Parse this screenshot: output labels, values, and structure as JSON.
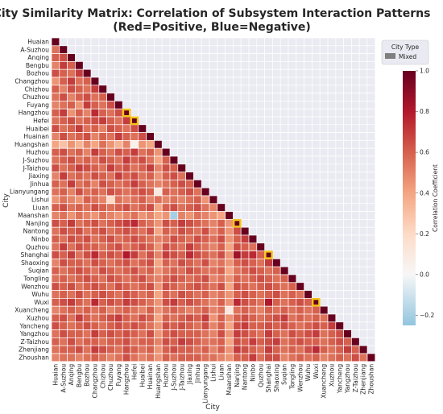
{
  "chart_data": {
    "type": "heatmap",
    "title": "City Similarity Matrix: Correlation of Subsystem Interaction Patterns",
    "subtitle": "(Red=Positive, Blue=Negative)",
    "xlabel": "City",
    "ylabel": "City",
    "colorbar": {
      "label": "Correlation Coefficient",
      "range": [
        -0.25,
        1.0
      ],
      "ticks": [
        -0.2,
        0.0,
        0.2,
        0.4,
        0.6,
        0.8,
        1.0
      ],
      "tick_labels": [
        "−0.2",
        "0.0",
        "0.2",
        "0.4",
        "0.6",
        "0.8",
        "1.0"
      ]
    },
    "legend": {
      "title": "City Type",
      "items": [
        "Mixed"
      ],
      "placement": "top-right"
    },
    "colors": {
      "positive": "#67001f",
      "zero": "#f7f7f7",
      "negative": "#92c5de",
      "upper_triangle": "#eaeaf2",
      "highlight": "#f5c518"
    },
    "mask": "upper-triangle",
    "categories": [
      "Huaian",
      "A-Suzhou",
      "Anqing",
      "Bengbu",
      "Bozhou",
      "Changzhou",
      "Chizhou",
      "Chuzhou",
      "Fuyang",
      "Hangzhou",
      "Hefei",
      "Huaibei",
      "Huainan",
      "Huangshan",
      "Huzhou",
      "J-Suzhou",
      "J-Taizhou",
      "Jiaxing",
      "Jinhua",
      "Lianyungang",
      "Lishui",
      "Liuan",
      "Maanshan",
      "Nanjing",
      "Nantong",
      "Ninbo",
      "Quzhou",
      "Shanghai",
      "Shaoxing",
      "Suqian",
      "Tongling",
      "Wenzhou",
      "Wuhu",
      "Wuxi",
      "Xuancheng",
      "Xuzhou",
      "Yancheng",
      "Yangzhou",
      "Z-Taizhou",
      "Zhenjiang",
      "Zhoushan"
    ],
    "highlighted_diagonal": [
      "Hangzhou",
      "Hefei",
      "Nanjing",
      "Shanghai",
      "Wuxi"
    ],
    "values": [
      [
        1.0
      ],
      [
        0.55,
        1.0
      ],
      [
        0.6,
        0.65,
        1.0
      ],
      [
        0.5,
        0.7,
        0.6,
        1.0
      ],
      [
        0.65,
        0.6,
        0.55,
        0.7,
        1.0
      ],
      [
        0.45,
        0.6,
        0.7,
        0.55,
        0.6,
        1.0
      ],
      [
        0.6,
        0.5,
        0.65,
        0.6,
        0.55,
        0.7,
        1.0
      ],
      [
        0.55,
        0.65,
        0.5,
        0.6,
        0.65,
        0.55,
        0.6,
        1.0
      ],
      [
        0.5,
        0.55,
        0.6,
        0.45,
        0.7,
        0.6,
        0.55,
        0.65,
        1.0
      ],
      [
        0.6,
        0.7,
        0.45,
        0.6,
        0.5,
        0.75,
        0.6,
        0.55,
        0.65,
        1.0
      ],
      [
        0.55,
        0.6,
        0.65,
        0.55,
        0.6,
        0.65,
        0.7,
        0.6,
        0.55,
        0.7,
        1.0
      ],
      [
        0.65,
        0.55,
        0.6,
        0.7,
        0.55,
        0.6,
        0.5,
        0.65,
        0.6,
        0.55,
        0.65,
        1.0
      ],
      [
        0.5,
        0.65,
        0.55,
        0.6,
        0.65,
        0.5,
        0.6,
        0.55,
        0.7,
        0.6,
        0.55,
        0.65,
        1.0
      ],
      [
        0.4,
        0.3,
        0.45,
        0.35,
        0.5,
        0.4,
        0.55,
        0.45,
        0.35,
        0.5,
        0.05,
        0.45,
        0.4,
        1.0
      ],
      [
        0.6,
        0.65,
        0.55,
        0.6,
        0.5,
        0.7,
        0.6,
        0.55,
        0.65,
        0.6,
        0.7,
        0.55,
        0.6,
        0.45,
        1.0
      ],
      [
        0.55,
        0.6,
        0.65,
        0.55,
        0.6,
        0.55,
        0.65,
        0.6,
        0.55,
        0.7,
        0.6,
        0.65,
        0.55,
        0.4,
        0.6,
        1.0
      ],
      [
        0.65,
        0.55,
        0.6,
        0.7,
        0.65,
        0.6,
        0.55,
        0.7,
        0.6,
        0.65,
        0.55,
        0.6,
        0.7,
        0.5,
        0.65,
        0.6,
        1.0
      ],
      [
        0.5,
        0.7,
        0.55,
        0.6,
        0.55,
        0.65,
        0.6,
        0.55,
        0.7,
        0.6,
        0.65,
        0.55,
        0.6,
        0.45,
        0.6,
        0.65,
        0.55,
        1.0
      ],
      [
        0.6,
        0.55,
        0.7,
        0.55,
        0.6,
        0.5,
        0.65,
        0.6,
        0.55,
        0.6,
        0.7,
        0.6,
        0.55,
        0.5,
        0.55,
        0.6,
        0.65,
        0.6,
        1.0
      ],
      [
        0.55,
        0.6,
        0.5,
        0.65,
        0.55,
        0.6,
        0.55,
        0.65,
        0.6,
        0.55,
        0.6,
        0.65,
        0.6,
        0.1,
        0.6,
        0.55,
        0.6,
        0.65,
        0.55,
        1.0
      ],
      [
        0.45,
        0.55,
        0.5,
        0.45,
        0.6,
        0.55,
        0.5,
        0.2,
        0.55,
        0.5,
        0.55,
        0.6,
        0.5,
        0.55,
        0.5,
        0.55,
        0.5,
        0.55,
        0.6,
        0.45,
        1.0
      ],
      [
        0.6,
        0.65,
        0.55,
        0.6,
        0.55,
        0.65,
        0.6,
        0.55,
        0.6,
        0.65,
        0.55,
        0.6,
        0.65,
        0.4,
        0.6,
        0.65,
        0.55,
        0.6,
        0.65,
        0.55,
        0.5,
        1.0
      ],
      [
        0.5,
        0.55,
        0.45,
        0.55,
        0.5,
        0.45,
        0.55,
        0.5,
        0.45,
        0.5,
        0.55,
        0.45,
        0.5,
        0.4,
        0.45,
        -0.2,
        0.5,
        0.45,
        0.55,
        0.5,
        0.45,
        0.4,
        1.0
      ],
      [
        0.65,
        0.6,
        0.7,
        0.55,
        0.6,
        0.65,
        0.55,
        0.6,
        0.65,
        0.7,
        0.75,
        0.6,
        0.55,
        0.45,
        0.65,
        0.6,
        0.7,
        0.65,
        0.6,
        0.55,
        0.5,
        0.6,
        0.45,
        1.0
      ],
      [
        0.55,
        0.65,
        0.6,
        0.65,
        0.55,
        0.6,
        0.65,
        0.55,
        0.6,
        0.65,
        0.6,
        0.55,
        0.65,
        0.4,
        0.6,
        0.55,
        0.65,
        0.6,
        0.55,
        0.65,
        0.5,
        0.6,
        0.45,
        0.65,
        1.0
      ],
      [
        0.6,
        0.55,
        0.65,
        0.6,
        0.65,
        0.55,
        0.6,
        0.65,
        0.55,
        0.6,
        0.65,
        0.6,
        0.55,
        0.5,
        0.55,
        0.65,
        0.6,
        0.55,
        0.65,
        0.6,
        0.55,
        0.65,
        0.45,
        0.6,
        0.7,
        1.0
      ],
      [
        0.55,
        0.7,
        0.55,
        0.65,
        0.6,
        0.6,
        0.55,
        0.6,
        0.65,
        0.55,
        0.6,
        0.65,
        0.6,
        0.45,
        0.65,
        0.6,
        0.55,
        0.7,
        0.6,
        0.55,
        0.5,
        0.6,
        0.4,
        0.65,
        0.6,
        0.55,
        1.0
      ],
      [
        0.65,
        0.6,
        0.7,
        0.55,
        0.65,
        0.75,
        0.6,
        0.65,
        0.6,
        0.8,
        0.7,
        0.55,
        0.65,
        0.5,
        0.7,
        0.65,
        0.6,
        0.75,
        0.65,
        0.6,
        0.55,
        0.65,
        0.45,
        0.85,
        0.7,
        0.75,
        0.6,
        1.0
      ],
      [
        0.5,
        0.65,
        0.6,
        0.6,
        0.55,
        0.65,
        0.6,
        0.55,
        0.6,
        0.65,
        0.55,
        0.6,
        0.65,
        0.4,
        0.6,
        0.55,
        0.65,
        0.6,
        0.55,
        0.65,
        0.5,
        0.55,
        0.45,
        0.6,
        0.65,
        0.6,
        0.55,
        0.7,
        1.0
      ],
      [
        0.6,
        0.55,
        0.6,
        0.65,
        0.6,
        0.55,
        0.65,
        0.6,
        0.55,
        0.6,
        0.65,
        0.55,
        0.6,
        0.45,
        0.55,
        0.6,
        0.55,
        0.65,
        0.6,
        0.55,
        0.55,
        0.6,
        0.4,
        0.55,
        0.6,
        0.65,
        0.6,
        0.55,
        0.6,
        1.0
      ],
      [
        0.55,
        0.6,
        0.55,
        0.6,
        0.65,
        0.6,
        0.55,
        0.65,
        0.6,
        0.55,
        0.6,
        0.65,
        0.55,
        0.5,
        0.6,
        0.65,
        0.6,
        0.55,
        0.6,
        0.65,
        0.5,
        0.55,
        0.45,
        0.6,
        0.55,
        0.6,
        0.65,
        0.6,
        0.55,
        0.6,
        1.0
      ],
      [
        0.65,
        0.6,
        0.65,
        0.55,
        0.6,
        0.65,
        0.6,
        0.55,
        0.65,
        0.6,
        0.55,
        0.6,
        0.65,
        0.45,
        0.65,
        0.6,
        0.55,
        0.6,
        0.65,
        0.6,
        0.55,
        0.65,
        0.4,
        0.65,
        0.6,
        0.55,
        0.6,
        0.65,
        0.6,
        0.55,
        0.6,
        1.0
      ],
      [
        0.55,
        0.6,
        0.55,
        0.65,
        0.55,
        0.6,
        0.65,
        0.6,
        0.55,
        0.65,
        0.6,
        0.55,
        0.6,
        0.4,
        0.6,
        0.55,
        0.65,
        0.6,
        0.55,
        0.6,
        0.5,
        0.55,
        0.45,
        0.6,
        0.65,
        0.6,
        0.55,
        0.6,
        0.65,
        0.55,
        0.6,
        0.55,
        1.0
      ],
      [
        0.6,
        0.65,
        0.7,
        0.6,
        0.55,
        0.75,
        0.6,
        0.65,
        0.6,
        0.7,
        0.65,
        0.6,
        0.55,
        0.45,
        0.65,
        0.7,
        0.6,
        0.65,
        0.6,
        0.55,
        0.5,
        0.6,
        0.45,
        0.75,
        0.65,
        0.6,
        0.55,
        0.8,
        0.6,
        0.55,
        0.6,
        0.65,
        0.6,
        1.0
      ],
      [
        0.5,
        0.55,
        0.6,
        0.55,
        0.6,
        0.55,
        0.6,
        0.5,
        0.55,
        0.6,
        0.55,
        0.5,
        0.6,
        0.45,
        0.55,
        0.6,
        0.55,
        0.5,
        0.55,
        0.6,
        0.5,
        0.55,
        0.1,
        0.55,
        0.6,
        0.55,
        0.5,
        0.6,
        0.55,
        0.6,
        0.55,
        0.6,
        0.55,
        0.6,
        1.0
      ],
      [
        0.6,
        0.65,
        0.55,
        0.7,
        0.6,
        0.55,
        0.6,
        0.65,
        0.7,
        0.6,
        0.55,
        0.65,
        0.6,
        0.4,
        0.6,
        0.55,
        0.6,
        0.65,
        0.6,
        0.7,
        0.45,
        0.6,
        0.45,
        0.6,
        0.65,
        0.6,
        0.55,
        0.6,
        0.65,
        0.7,
        0.55,
        0.6,
        0.55,
        0.6,
        0.55,
        1.0
      ],
      [
        0.65,
        0.6,
        0.55,
        0.6,
        0.65,
        0.6,
        0.55,
        0.6,
        0.65,
        0.6,
        0.65,
        0.6,
        0.55,
        0.45,
        0.65,
        0.6,
        0.65,
        0.6,
        0.55,
        0.65,
        0.5,
        0.6,
        0.4,
        0.65,
        0.7,
        0.6,
        0.6,
        0.65,
        0.6,
        0.65,
        0.6,
        0.55,
        0.6,
        0.65,
        0.6,
        0.7,
        1.0
      ],
      [
        0.55,
        0.65,
        0.6,
        0.6,
        0.55,
        0.7,
        0.6,
        0.65,
        0.6,
        0.65,
        0.6,
        0.55,
        0.65,
        0.45,
        0.6,
        0.65,
        0.6,
        0.6,
        0.6,
        0.55,
        0.5,
        0.65,
        0.45,
        0.7,
        0.65,
        0.6,
        0.55,
        0.7,
        0.6,
        0.55,
        0.65,
        0.6,
        0.65,
        0.7,
        0.55,
        0.6,
        0.65,
        1.0
      ],
      [
        0.6,
        0.55,
        0.65,
        0.55,
        0.6,
        0.6,
        0.55,
        0.6,
        0.6,
        0.65,
        0.55,
        0.6,
        0.6,
        0.5,
        0.65,
        0.6,
        0.7,
        0.65,
        0.6,
        0.55,
        0.55,
        0.6,
        0.4,
        0.65,
        0.6,
        0.7,
        0.6,
        0.65,
        0.7,
        0.55,
        0.6,
        0.65,
        0.6,
        0.6,
        0.55,
        0.6,
        0.65,
        0.6,
        1.0
      ],
      [
        0.55,
        0.6,
        0.6,
        0.65,
        0.55,
        0.7,
        0.65,
        0.6,
        0.55,
        0.65,
        0.6,
        0.55,
        0.6,
        0.45,
        0.6,
        0.65,
        0.6,
        0.6,
        0.55,
        0.6,
        0.5,
        0.6,
        0.45,
        0.7,
        0.65,
        0.6,
        0.55,
        0.7,
        0.6,
        0.55,
        0.6,
        0.55,
        0.65,
        0.75,
        0.6,
        0.55,
        0.6,
        0.7,
        0.6,
        1.0
      ],
      [
        0.5,
        0.55,
        0.55,
        0.5,
        0.55,
        0.6,
        0.55,
        0.5,
        0.55,
        0.65,
        0.55,
        0.5,
        0.55,
        0.45,
        0.6,
        0.55,
        0.6,
        0.6,
        0.6,
        0.55,
        0.55,
        0.5,
        0.45,
        0.6,
        0.6,
        0.7,
        0.55,
        0.65,
        0.65,
        0.5,
        0.55,
        0.6,
        0.55,
        0.6,
        0.5,
        0.55,
        0.6,
        0.55,
        0.65,
        0.55,
        1.0
      ]
    ]
  }
}
